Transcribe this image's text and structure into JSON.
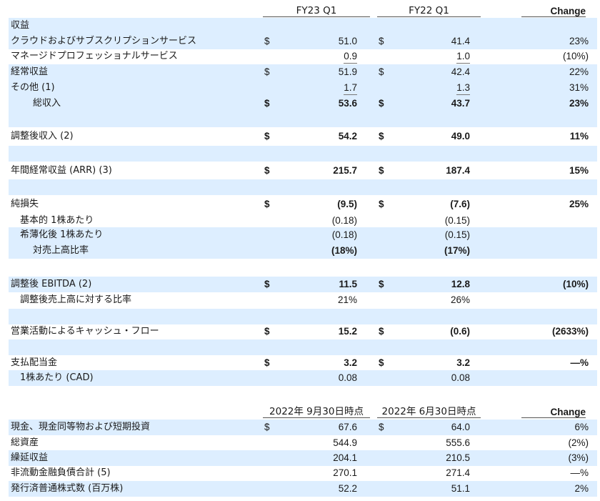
{
  "header1": {
    "col1": "FY23 Q1",
    "col2": "FY22 Q1",
    "col3": "Change"
  },
  "rows1": [
    {
      "label": "収益",
      "d1": "",
      "v1": "",
      "d2": "",
      "v2": "",
      "pct": ""
    },
    {
      "label": "クラウドおよびサブスクリプションサービス",
      "d1": "$",
      "v1": "51.0",
      "d2": "$",
      "v2": "41.4",
      "pct": "23%"
    },
    {
      "label": "マネージドプロフェッショナルサービス",
      "d1": "",
      "v1": "0.9",
      "d2": "",
      "v2": "1.0",
      "pct": "(10%)"
    },
    {
      "label": "経常収益",
      "d1": "$",
      "v1": "51.9",
      "d2": "$",
      "v2": "42.4",
      "pct": "22%"
    },
    {
      "label": "その他 (1)",
      "d1": "",
      "v1": "1.7",
      "d2": "",
      "v2": "1.3",
      "pct": "31%"
    },
    {
      "label": "総収入",
      "d1": "$",
      "v1": "53.6",
      "d2": "$",
      "v2": "43.7",
      "pct": "23%"
    },
    {
      "label": "",
      "d1": "",
      "v1": "",
      "d2": "",
      "v2": "",
      "pct": ""
    },
    {
      "label": "調整後収入 (2)",
      "d1": "$",
      "v1": "54.2",
      "d2": "$",
      "v2": "49.0",
      "pct": "11%"
    },
    {
      "label": "",
      "d1": "",
      "v1": "",
      "d2": "",
      "v2": "",
      "pct": ""
    },
    {
      "label": "年間経常収益 (ARR) (3)",
      "d1": "$",
      "v1": "215.7",
      "d2": "$",
      "v2": "187.4",
      "pct": "15%"
    },
    {
      "label": "",
      "d1": "",
      "v1": "",
      "d2": "",
      "v2": "",
      "pct": ""
    },
    {
      "label": "純損失",
      "d1": "$",
      "v1": "(9.5)",
      "d2": "$",
      "v2": "(7.6)",
      "pct": "25%"
    },
    {
      "label": "基本的 1株あたり",
      "d1": "",
      "v1": "(0.18)",
      "d2": "",
      "v2": "(0.15)",
      "pct": ""
    },
    {
      "label": "希薄化後 1株あたり",
      "d1": "",
      "v1": "(0.18)",
      "d2": "",
      "v2": "(0.15)",
      "pct": ""
    },
    {
      "label": "対売上高比率",
      "d1": "",
      "v1": "(18%)",
      "d2": "",
      "v2": "(17%)",
      "pct": ""
    },
    {
      "label": "",
      "d1": "",
      "v1": "",
      "d2": "",
      "v2": "",
      "pct": ""
    },
    {
      "label": "調整後 EBITDA (2)",
      "d1": "$",
      "v1": "11.5",
      "d2": "$",
      "v2": "12.8",
      "pct": "(10%)"
    },
    {
      "label": "調整後売上高に対する比率",
      "d1": "",
      "v1": "21%",
      "d2": "",
      "v2": "26%",
      "pct": ""
    },
    {
      "label": "",
      "d1": "",
      "v1": "",
      "d2": "",
      "v2": "",
      "pct": ""
    },
    {
      "label": "営業活動によるキャッシュ・フロー",
      "d1": "$",
      "v1": "15.2",
      "d2": "$",
      "v2": "(0.6)",
      "pct": "(2633%)"
    },
    {
      "label": "",
      "d1": "",
      "v1": "",
      "d2": "",
      "v2": "",
      "pct": ""
    },
    {
      "label": "支払配当金",
      "d1": "$",
      "v1": "3.2",
      "d2": "$",
      "v2": "3.2",
      "pct": "—%"
    },
    {
      "label": "1株あたり (CAD)",
      "d1": "",
      "v1": "0.08",
      "d2": "",
      "v2": "0.08",
      "pct": ""
    }
  ],
  "header2": {
    "col1": "2022年 9月30日時点",
    "col2": "2022年 6月30日時点",
    "col3": "Change"
  },
  "rows2": [
    {
      "label": "現金、現金同等物および短期投資",
      "d1": "$",
      "v1": "67.6",
      "d2": "$",
      "v2": "64.0",
      "pct": "6%"
    },
    {
      "label": "総資産",
      "d1": "",
      "v1": "544.9",
      "d2": "",
      "v2": "555.6",
      "pct": "(2%)"
    },
    {
      "label": "繰延収益",
      "d1": "",
      "v1": "204.1",
      "d2": "",
      "v2": "210.5",
      "pct": "(3%)"
    },
    {
      "label": "非流動金融負債合計 (5)",
      "d1": "",
      "v1": "270.1",
      "d2": "",
      "v2": "271.4",
      "pct": "—%"
    },
    {
      "label": "発行済普通株式数 (百万株)",
      "d1": "",
      "v1": "52.2",
      "d2": "",
      "v2": "51.1",
      "pct": "2%"
    }
  ]
}
